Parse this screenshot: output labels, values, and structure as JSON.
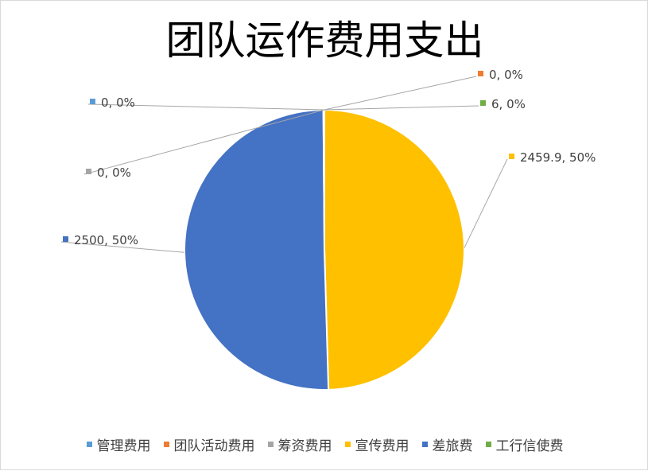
{
  "chart_data": {
    "type": "pie",
    "title": "团队运作费用支出",
    "categories": [
      "管理费用",
      "团队活动费用",
      "筹资费用",
      "宣传费用",
      "差旅费",
      "工行信使费"
    ],
    "values": [
      0,
      0,
      0,
      2459.9,
      2500,
      6
    ],
    "data_labels": [
      "0, 0%",
      "0, 0%",
      "0, 0%",
      "2459.9, 50%",
      "2500, 50%",
      "6, 0%"
    ],
    "colors": [
      "#5b9bd5",
      "#ed7d31",
      "#a5a5a5",
      "#ffc000",
      "#4472c4",
      "#70ad47"
    ],
    "legend_position": "bottom"
  }
}
